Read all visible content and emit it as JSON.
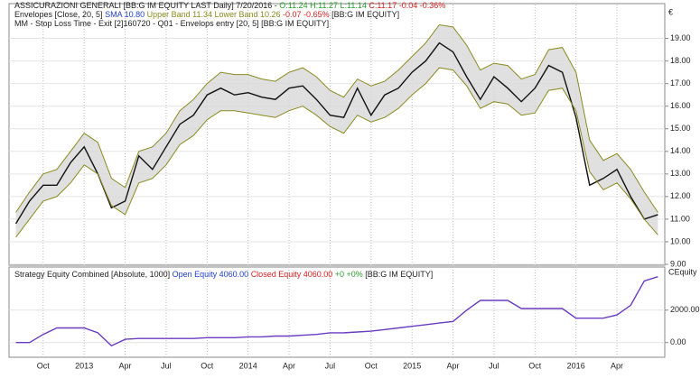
{
  "chart_data": [
    {
      "type": "line",
      "header_lines": [
        [
          {
            "text": "ASSICURAZIONI GENERALI [BB:G IM EQUITY LAST Daily] 7/20/2016 - ",
            "color": "#222222"
          },
          {
            "text": "O:11.24 H:11.27 L:11.14 ",
            "color": "#2a9d2a"
          },
          {
            "text": "C:11.17 -0.04 -0.36%",
            "color": "#d62020"
          }
        ],
        [
          {
            "text": "Envelopes [Close, 20, 5] ",
            "color": "#222222"
          },
          {
            "text": "SMA 10.80 ",
            "color": "#2040d0"
          },
          {
            "text": "Upper Band 11.34 Lower Band 10.26 ",
            "color": "#8a8a20"
          },
          {
            "text": "-0.07 -0.65% ",
            "color": "#d62020"
          },
          {
            "text": "[BB:G IM EQUITY]",
            "color": "#222222"
          }
        ],
        [
          {
            "text": "MM - Stop Loss Time - Exit [2]",
            "color": "#222222"
          },
          {
            "text": "160720 - Q01 - Envelops entry [20, 5] [BB:G IM EQUITY]",
            "color": "#222222"
          }
        ]
      ],
      "y_label": "€",
      "categories": [
        null,
        null,
        "Oct",
        null,
        null,
        "2013",
        null,
        null,
        "Apr",
        null,
        null,
        "Jul",
        null,
        null,
        "Oct",
        null,
        null,
        "2014",
        null,
        null,
        "Apr",
        null,
        null,
        "Jul",
        null,
        null,
        "Oct",
        null,
        null,
        "2015",
        null,
        null,
        "Apr",
        null,
        null,
        "Jul",
        null,
        null,
        "Oct",
        null,
        null,
        "2016",
        null,
        null,
        "Apr",
        null,
        null,
        null
      ],
      "series": [
        {
          "name": "Close",
          "color": "#111111",
          "values": [
            10.8,
            11.8,
            12.5,
            12.5,
            13.5,
            14.2,
            13.0,
            11.5,
            11.8,
            13.8,
            13.2,
            14.2,
            15.2,
            15.6,
            16.5,
            16.8,
            16.5,
            16.6,
            16.4,
            16.3,
            16.8,
            16.9,
            16.3,
            15.6,
            15.5,
            16.8,
            15.6,
            16.5,
            16.8,
            17.5,
            18.0,
            18.8,
            18.4,
            17.3,
            16.3,
            17.3,
            16.8,
            16.2,
            16.8,
            17.8,
            17.5,
            15.5,
            12.5,
            12.8,
            13.2,
            12.0,
            11.0,
            11.2
          ]
        },
        {
          "name": "Upper Band",
          "color": "#8a8a20",
          "values": [
            11.3,
            12.2,
            13.0,
            13.2,
            14.0,
            14.8,
            14.4,
            12.8,
            12.4,
            14.0,
            14.2,
            14.8,
            15.8,
            16.3,
            17.0,
            17.5,
            17.4,
            17.4,
            17.2,
            17.1,
            17.5,
            17.7,
            17.3,
            16.7,
            16.4,
            17.2,
            16.9,
            17.1,
            17.6,
            18.2,
            18.8,
            19.6,
            19.5,
            18.7,
            17.6,
            17.9,
            17.8,
            17.2,
            17.4,
            18.5,
            18.6,
            17.5,
            14.5,
            13.6,
            13.9,
            13.2,
            12.2,
            11.3
          ]
        },
        {
          "name": "Lower Band",
          "color": "#8a8a20",
          "values": [
            10.2,
            11.0,
            11.8,
            12.0,
            12.6,
            13.4,
            13.0,
            11.6,
            11.2,
            12.6,
            12.8,
            13.4,
            14.3,
            14.7,
            15.4,
            15.8,
            15.8,
            15.7,
            15.6,
            15.5,
            15.8,
            16.0,
            15.6,
            15.1,
            14.8,
            15.6,
            15.3,
            15.5,
            15.9,
            16.5,
            17.0,
            17.7,
            17.6,
            16.9,
            15.9,
            16.2,
            16.1,
            15.6,
            15.7,
            16.7,
            16.8,
            15.8,
            13.1,
            12.3,
            12.6,
            11.9,
            11.0,
            10.3
          ]
        }
      ],
      "ylim": [
        9.0,
        20.3
      ],
      "yticks": [
        {
          "value": 9,
          "label": "9.00"
        },
        {
          "value": 10,
          "label": "10.00"
        },
        {
          "value": 11,
          "label": "11.00"
        },
        {
          "value": 12,
          "label": "12.00"
        },
        {
          "value": 13,
          "label": "13.00"
        },
        {
          "value": 14,
          "label": "14.00"
        },
        {
          "value": 15,
          "label": "15.00"
        },
        {
          "value": 16,
          "label": "16.00"
        },
        {
          "value": 17,
          "label": "17.00"
        },
        {
          "value": 18,
          "label": "18.00"
        },
        {
          "value": 19,
          "label": "19.00"
        }
      ],
      "grid": true
    },
    {
      "type": "line",
      "header_lines": [
        [
          {
            "text": "Strategy Equity Combined [Absolute, 1000] ",
            "color": "#222222"
          },
          {
            "text": "Open Equity 4060.00 ",
            "color": "#2040d0"
          },
          {
            "text": "Closed Equity 4060.00 ",
            "color": "#d62020"
          },
          {
            "text": "+0 +0% ",
            "color": "#2a9d2a"
          },
          {
            "text": "[BB:G IM EQUITY]",
            "color": "#222222"
          }
        ]
      ],
      "y_label": "CEquity",
      "series": [
        {
          "name": "Equity",
          "color": "#6a3cc0",
          "values": [
            0,
            0,
            500,
            900,
            900,
            900,
            600,
            -200,
            200,
            250,
            250,
            250,
            250,
            250,
            300,
            300,
            300,
            350,
            350,
            400,
            400,
            450,
            500,
            600,
            600,
            650,
            700,
            800,
            900,
            1000,
            1100,
            1200,
            1300,
            2000,
            2600,
            2600,
            2600,
            2100,
            2100,
            2100,
            2100,
            1500,
            1500,
            1500,
            1700,
            2300,
            3800,
            4060
          ]
        }
      ],
      "ylim": [
        -850,
        4600
      ],
      "yticks": [
        {
          "value": 0,
          "label": "0.00"
        },
        {
          "value": 2000,
          "label": "2000.00"
        }
      ],
      "grid": true
    }
  ]
}
